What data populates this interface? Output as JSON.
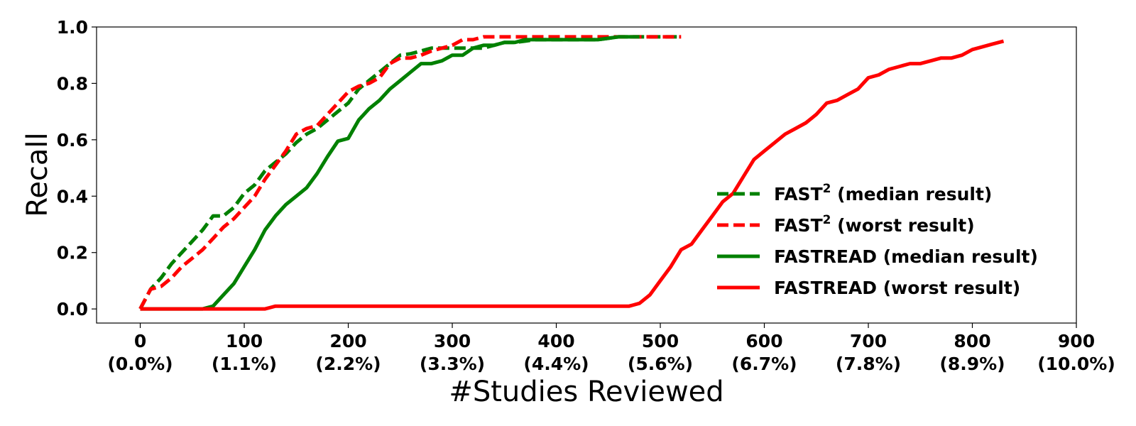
{
  "chart_data": {
    "type": "line",
    "title": "",
    "xlabel": "#Studies Reviewed",
    "ylabel": "Recall",
    "xlim": [
      -42,
      900
    ],
    "ylim": [
      -0.05,
      1.0
    ],
    "xticks": [
      0,
      100,
      200,
      300,
      400,
      500,
      600,
      700,
      800,
      900
    ],
    "xtick_labels": [
      "0",
      "100",
      "200",
      "300",
      "400",
      "500",
      "600",
      "700",
      "800",
      "900"
    ],
    "xtick_sublabels": [
      "(0.0%)",
      "(1.1%)",
      "(2.2%)",
      "(3.3%)",
      "(4.4%)",
      "(5.6%)",
      "(6.7%)",
      "(7.8%)",
      "(8.9%)",
      "(10.0%)"
    ],
    "yticks": [
      0.0,
      0.2,
      0.4,
      0.6,
      0.8,
      1.0
    ],
    "ytick_labels": [
      "0.0",
      "0.2",
      "0.4",
      "0.6",
      "0.8",
      "1.0"
    ],
    "grid": false,
    "legend_position": "center-right",
    "series": [
      {
        "name": "FAST² (median result)",
        "name_base": "FAST",
        "name_sup": "2",
        "name_rest": " (median result)",
        "color": "#008000",
        "style": "dashed",
        "x": [
          0,
          10,
          20,
          30,
          40,
          50,
          60,
          70,
          80,
          90,
          100,
          110,
          120,
          130,
          140,
          150,
          160,
          170,
          180,
          190,
          200,
          210,
          220,
          230,
          240,
          250,
          260,
          270,
          280,
          290,
          300,
          310,
          320,
          330,
          340,
          350,
          360,
          370,
          380,
          390,
          400,
          420,
          440,
          460,
          480,
          500,
          520
        ],
        "y": [
          0.0,
          0.07,
          0.11,
          0.16,
          0.2,
          0.24,
          0.28,
          0.33,
          0.33,
          0.36,
          0.41,
          0.44,
          0.49,
          0.52,
          0.55,
          0.59,
          0.62,
          0.64,
          0.67,
          0.7,
          0.73,
          0.78,
          0.81,
          0.84,
          0.87,
          0.9,
          0.905,
          0.915,
          0.925,
          0.925,
          0.925,
          0.925,
          0.925,
          0.925,
          0.935,
          0.945,
          0.945,
          0.95,
          0.955,
          0.955,
          0.955,
          0.955,
          0.955,
          0.965,
          0.965,
          0.965,
          0.965
        ]
      },
      {
        "name": "FAST² (worst result)",
        "name_base": "FAST",
        "name_sup": "2",
        "name_rest": " (worst result)",
        "color": "#ff0000",
        "style": "dashed",
        "x": [
          0,
          10,
          20,
          30,
          40,
          50,
          60,
          70,
          80,
          90,
          100,
          110,
          120,
          130,
          140,
          150,
          160,
          170,
          180,
          190,
          200,
          210,
          220,
          230,
          240,
          250,
          260,
          270,
          280,
          290,
          300,
          310,
          320,
          330,
          340,
          350,
          400,
          450,
          500,
          520
        ],
        "y": [
          0.0,
          0.07,
          0.08,
          0.11,
          0.15,
          0.18,
          0.21,
          0.25,
          0.29,
          0.32,
          0.36,
          0.4,
          0.46,
          0.51,
          0.56,
          0.62,
          0.64,
          0.65,
          0.69,
          0.73,
          0.77,
          0.79,
          0.8,
          0.82,
          0.87,
          0.89,
          0.89,
          0.9,
          0.915,
          0.925,
          0.935,
          0.955,
          0.955,
          0.965,
          0.965,
          0.965,
          0.965,
          0.965,
          0.965,
          0.965
        ]
      },
      {
        "name": "FASTREAD (median result)",
        "color": "#008000",
        "style": "solid",
        "x": [
          0,
          60,
          70,
          80,
          90,
          100,
          110,
          120,
          130,
          140,
          150,
          160,
          170,
          180,
          190,
          200,
          210,
          220,
          230,
          240,
          250,
          260,
          270,
          280,
          290,
          300,
          310,
          320,
          330,
          340,
          350,
          360,
          370,
          380,
          390,
          400,
          420,
          440,
          460,
          480
        ],
        "y": [
          0.0,
          0.0,
          0.01,
          0.05,
          0.09,
          0.15,
          0.21,
          0.28,
          0.33,
          0.37,
          0.4,
          0.43,
          0.48,
          0.54,
          0.595,
          0.605,
          0.67,
          0.71,
          0.74,
          0.78,
          0.81,
          0.84,
          0.87,
          0.87,
          0.88,
          0.9,
          0.9,
          0.925,
          0.935,
          0.935,
          0.945,
          0.945,
          0.955,
          0.955,
          0.955,
          0.955,
          0.955,
          0.955,
          0.965,
          0.965
        ]
      },
      {
        "name": "FASTREAD (worst result)",
        "color": "#ff0000",
        "style": "solid",
        "x": [
          0,
          120,
          130,
          200,
          300,
          400,
          470,
          480,
          490,
          500,
          510,
          520,
          530,
          540,
          550,
          560,
          570,
          580,
          590,
          600,
          610,
          620,
          630,
          640,
          650,
          660,
          670,
          680,
          690,
          700,
          710,
          720,
          730,
          740,
          750,
          760,
          770,
          780,
          790,
          800,
          810,
          820,
          830
        ],
        "y": [
          0.0,
          0.0,
          0.01,
          0.01,
          0.01,
          0.01,
          0.01,
          0.02,
          0.05,
          0.1,
          0.15,
          0.21,
          0.23,
          0.28,
          0.33,
          0.38,
          0.41,
          0.47,
          0.53,
          0.56,
          0.59,
          0.62,
          0.64,
          0.66,
          0.69,
          0.73,
          0.74,
          0.76,
          0.78,
          0.82,
          0.83,
          0.85,
          0.86,
          0.87,
          0.87,
          0.88,
          0.89,
          0.89,
          0.9,
          0.92,
          0.93,
          0.94,
          0.95
        ]
      }
    ]
  }
}
